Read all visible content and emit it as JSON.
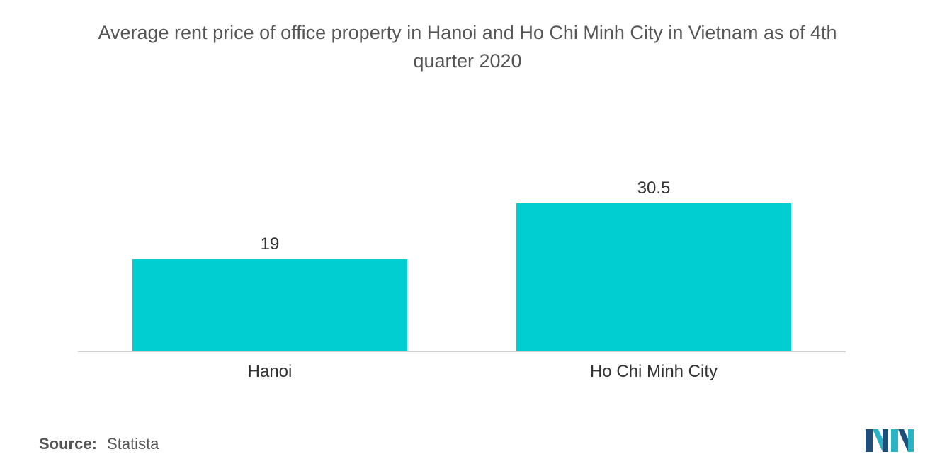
{
  "title_lines": [
    "Average rent price of office property in Hanoi and Ho Chi Minh City in Vietnam as of 4th",
    "quarter 2020"
  ],
  "source": {
    "label": "Source:",
    "value": "Statista"
  },
  "colors": {
    "bar": "#00CED1",
    "axis": "#cfcfcf",
    "text": "#555555",
    "logo_dark": "#1e4e79",
    "logo_light": "#2ab3c4"
  },
  "chart_data": {
    "type": "bar",
    "categories": [
      "Hanoi",
      "Ho Chi Minh City"
    ],
    "values": [
      19,
      30.5
    ],
    "data_labels": [
      "19",
      "30.5"
    ],
    "title": "Average rent price of office property in Hanoi and Ho Chi Minh City in Vietnam as of 4th quarter 2020",
    "xlabel": "",
    "ylabel": "",
    "ylim": [
      0,
      30.5
    ],
    "grid": false,
    "legend": "none"
  }
}
